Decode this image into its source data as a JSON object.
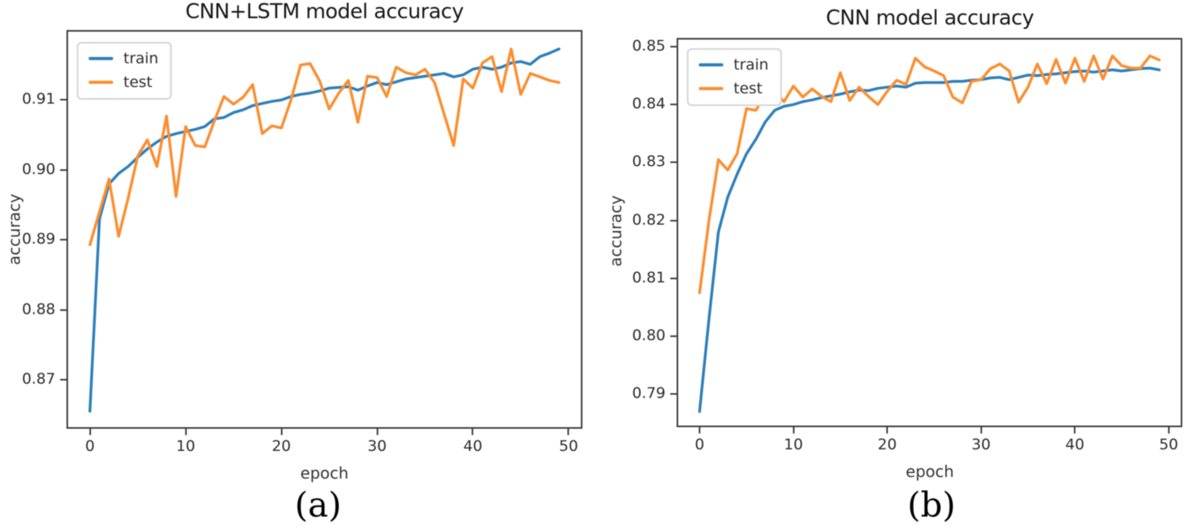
{
  "figure": {
    "background": "#ffffff",
    "text_color": "#2b2b2b"
  },
  "chart_data": [
    {
      "type": "line",
      "title": "CNN+LSTM model accuracy",
      "xlabel": "epoch",
      "ylabel": "accuracy",
      "caption": "(a)",
      "legend_position": "upper left",
      "grid": false,
      "x_ticks": [
        0,
        10,
        20,
        30,
        40,
        50
      ],
      "y_ticks": [
        "0.87",
        "0.88",
        "0.89",
        "0.90",
        "0.91"
      ],
      "xlim": [
        -2.45,
        51.45
      ],
      "ylim": [
        0.863,
        0.92
      ],
      "x_start": 0,
      "x_step": 1,
      "n_points": 50,
      "series": [
        {
          "name": "train",
          "color": "#2e7fba",
          "values": [
            0.8655,
            0.893,
            0.898,
            0.8995,
            0.9005,
            0.9018,
            0.903,
            0.904,
            0.9048,
            0.9052,
            0.9055,
            0.9058,
            0.9062,
            0.9073,
            0.9075,
            0.9082,
            0.9086,
            0.9092,
            0.9095,
            0.9098,
            0.91,
            0.9105,
            0.9108,
            0.911,
            0.9113,
            0.9117,
            0.9118,
            0.9119,
            0.9114,
            0.912,
            0.9125,
            0.9122,
            0.9126,
            0.913,
            0.9132,
            0.9134,
            0.9136,
            0.9138,
            0.9133,
            0.9136,
            0.9144,
            0.9147,
            0.9144,
            0.9147,
            0.9153,
            0.9155,
            0.9151,
            0.9162,
            0.9167,
            0.9173
          ]
        },
        {
          "name": "test",
          "color": "#fb8e30",
          "values": [
            0.8893,
            0.894,
            0.8987,
            0.8905,
            0.896,
            0.902,
            0.9043,
            0.9005,
            0.9077,
            0.8962,
            0.9062,
            0.9035,
            0.9033,
            0.907,
            0.9105,
            0.9094,
            0.9104,
            0.9122,
            0.9052,
            0.9063,
            0.906,
            0.91,
            0.915,
            0.9152,
            0.9127,
            0.9087,
            0.911,
            0.9128,
            0.9068,
            0.9134,
            0.9132,
            0.9105,
            0.9147,
            0.9139,
            0.9136,
            0.9144,
            0.9125,
            0.908,
            0.9035,
            0.913,
            0.9117,
            0.9153,
            0.9162,
            0.9112,
            0.9173,
            0.9108,
            0.9138,
            0.9133,
            0.9128,
            0.9125
          ]
        }
      ]
    },
    {
      "type": "line",
      "title": "CNN model accuracy",
      "xlabel": "epoch",
      "ylabel": "accuracy",
      "caption": "(b)",
      "legend_position": "upper left",
      "grid": false,
      "x_ticks": [
        0,
        10,
        20,
        30,
        40,
        50
      ],
      "y_ticks": [
        "0.79",
        "0.80",
        "0.81",
        "0.82",
        "0.83",
        "0.84",
        "0.85"
      ],
      "xlim": [
        -2.45,
        51.45
      ],
      "ylim": [
        0.7843,
        0.8515
      ],
      "x_start": 0,
      "x_step": 1,
      "n_points": 50,
      "series": [
        {
          "name": "train",
          "color": "#2e7fba",
          "values": [
            0.787,
            0.803,
            0.818,
            0.824,
            0.828,
            0.8315,
            0.834,
            0.837,
            0.839,
            0.8397,
            0.84,
            0.8405,
            0.8408,
            0.8412,
            0.8415,
            0.8418,
            0.8422,
            0.8425,
            0.8424,
            0.8428,
            0.843,
            0.8432,
            0.843,
            0.8437,
            0.8438,
            0.8438,
            0.8438,
            0.844,
            0.844,
            0.8442,
            0.8443,
            0.8446,
            0.8447,
            0.8443,
            0.8447,
            0.8451,
            0.845,
            0.8452,
            0.8453,
            0.8455,
            0.8457,
            0.8458,
            0.8456,
            0.8458,
            0.846,
            0.8458,
            0.846,
            0.8462,
            0.8463,
            0.846
          ]
        },
        {
          "name": "test",
          "color": "#fb8e30",
          "values": [
            0.8075,
            0.82,
            0.8305,
            0.8287,
            0.8315,
            0.8393,
            0.839,
            0.8419,
            0.8424,
            0.8405,
            0.8432,
            0.8413,
            0.8427,
            0.8414,
            0.8405,
            0.8455,
            0.8407,
            0.843,
            0.8414,
            0.84,
            0.8423,
            0.8442,
            0.8435,
            0.848,
            0.8465,
            0.8458,
            0.845,
            0.8413,
            0.8403,
            0.844,
            0.8443,
            0.8462,
            0.847,
            0.8458,
            0.8404,
            0.843,
            0.847,
            0.8436,
            0.8478,
            0.8437,
            0.848,
            0.844,
            0.8484,
            0.8444,
            0.8484,
            0.8467,
            0.8463,
            0.8463,
            0.8484,
            0.8477
          ]
        }
      ]
    }
  ]
}
